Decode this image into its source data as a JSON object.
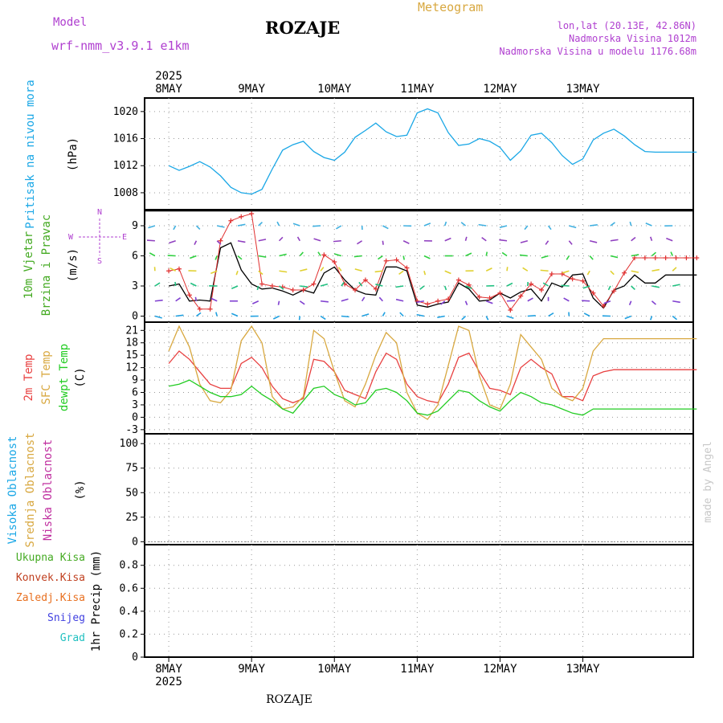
{
  "header": {
    "model_label": "Model",
    "model_name": "wrf-nmm_v3.9.1 e1km",
    "station": "ROZAJE",
    "product": "Meteogram",
    "coords": "lon,lat (20.13E, 42.86N)",
    "elevation": "Nadmorska Visina 1012m",
    "model_elevation": "Nadmorska Visina u modelu 1176.68m",
    "footer_station": "ROZAJE",
    "credit": "made by Angel"
  },
  "colors": {
    "pressure": "#1aa7e6",
    "wind10": "#000000",
    "gust": "#e03030",
    "temp2m": "#e84040",
    "sfc": "#d8a840",
    "dew": "#22cc22",
    "high_cloud": "#1aa7e6",
    "mid_cloud": "#d8a840",
    "low_cloud": "#c030a0",
    "total_precip": "#44aa22",
    "conv_precip": "#c04020",
    "ice": "#e87020",
    "snow": "#4040e0",
    "hail": "#20c0c0"
  },
  "time_axis": {
    "top_year": "2025",
    "bottom_year": "2025",
    "days": [
      "8MAY",
      "9MAY",
      "10MAY",
      "11MAY",
      "12MAY",
      "13MAY"
    ]
  },
  "chart_data": [
    {
      "type": "line",
      "panel": "pressure",
      "ylabel_lines": [
        "Pritisak na nivou mora",
        "(hPa)"
      ],
      "yticks": [
        1008,
        1012,
        1016,
        1020
      ],
      "ylim": [
        1005.5,
        1022.0
      ],
      "x": [
        0,
        3,
        6,
        9,
        12,
        15,
        18,
        21,
        24,
        27,
        30,
        33,
        36,
        39,
        42,
        45,
        48,
        51,
        54,
        57,
        60,
        63,
        66,
        69,
        72,
        75,
        78,
        81,
        84,
        87,
        90,
        93,
        96,
        99,
        102,
        105,
        108,
        111,
        114,
        117,
        120,
        123,
        126,
        129,
        132,
        135,
        138,
        141,
        144,
        147,
        150,
        153
      ],
      "values": [
        1012.0,
        1011.3,
        1011.9,
        1012.6,
        1011.8,
        1010.5,
        1008.8,
        1008.0,
        1007.8,
        1008.5,
        1011.5,
        1014.3,
        1015.1,
        1015.6,
        1014.1,
        1013.2,
        1012.8,
        1014.0,
        1016.2,
        1017.2,
        1018.3,
        1017.0,
        1016.3,
        1016.5,
        1019.8,
        1020.4,
        1019.8,
        1016.9,
        1015.0,
        1015.2,
        1016.0,
        1015.6,
        1014.7,
        1012.8,
        1014.2,
        1016.5,
        1016.8,
        1015.4,
        1013.5,
        1012.2,
        1013.0,
        1015.8,
        1016.8,
        1017.4,
        1016.4,
        1015.1,
        1014.1,
        1014.0,
        1014.0,
        1014.0,
        1014.0,
        1014.0
      ]
    },
    {
      "type": "line",
      "panel": "wind",
      "ylabel_lines": [
        "10m Vjetar",
        "Brzina i Pravac",
        "(m/s)"
      ],
      "compass": {
        "n": "N",
        "w": "W",
        "e": "E",
        "s": "S"
      },
      "yticks": [
        0,
        3,
        6,
        9
      ],
      "ylim": [
        -0.6,
        10.6
      ],
      "x": [
        0,
        3,
        6,
        9,
        12,
        15,
        18,
        21,
        24,
        27,
        30,
        33,
        36,
        39,
        42,
        45,
        48,
        51,
        54,
        57,
        60,
        63,
        66,
        69,
        72,
        75,
        78,
        81,
        84,
        87,
        90,
        93,
        96,
        99,
        102,
        105,
        108,
        111,
        114,
        117,
        120,
        123,
        126,
        129,
        132,
        135,
        138,
        141,
        144,
        147,
        150,
        153
      ],
      "series": [
        {
          "values": [
            3.0,
            3.2,
            1.5,
            1.6,
            1.5,
            6.8,
            7.3,
            4.6,
            3.2,
            2.7,
            2.8,
            2.5,
            2.1,
            2.6,
            2.3,
            4.3,
            4.9,
            3.6,
            2.6,
            2.2,
            2.1,
            4.9,
            4.9,
            4.5,
            1.1,
            0.9,
            1.2,
            1.4,
            3.3,
            2.7,
            1.5,
            1.6,
            2.3,
            1.8,
            2.4,
            2.7,
            1.5,
            3.3,
            2.9,
            4.1,
            4.2,
            1.8,
            0.8,
            2.6,
            3.0,
            4.1,
            3.3,
            3.3,
            4.1,
            4.1,
            4.1,
            4.1
          ]
        },
        {
          "values": [
            4.5,
            4.7,
            2.1,
            0.7,
            0.7,
            7.5,
            9.5,
            9.9,
            10.2,
            3.2,
            3.0,
            2.9,
            2.6,
            2.6,
            3.2,
            6.1,
            5.4,
            3.2,
            2.6,
            3.6,
            2.7,
            5.5,
            5.6,
            4.8,
            1.5,
            1.2,
            1.5,
            1.7,
            3.6,
            3.1,
            1.9,
            1.8,
            2.3,
            0.6,
            2.0,
            3.2,
            2.6,
            4.2,
            4.2,
            3.7,
            3.5,
            2.3,
            1.0,
            2.5,
            4.3,
            5.8,
            5.8,
            5.8,
            5.8,
            5.8,
            5.8,
            5.8
          ]
        }
      ]
    },
    {
      "type": "line",
      "panel": "temperature",
      "ylabel_lines": [
        "2m Temp",
        "SFC Temp",
        "dewpt Temp",
        "(C)"
      ],
      "yticks": [
        -3,
        0,
        3,
        6,
        9,
        12,
        15,
        18,
        21
      ],
      "ylim": [
        -4.0,
        23.0
      ],
      "x": [
        0,
        3,
        6,
        9,
        12,
        15,
        18,
        21,
        24,
        27,
        30,
        33,
        36,
        39,
        42,
        45,
        48,
        51,
        54,
        57,
        60,
        63,
        66,
        69,
        72,
        75,
        78,
        81,
        84,
        87,
        90,
        93,
        96,
        99,
        102,
        105,
        108,
        111,
        114,
        117,
        120,
        123,
        126,
        129,
        132,
        135,
        138,
        141,
        144,
        147,
        150,
        153
      ],
      "series": [
        {
          "values": [
            13.0,
            16.0,
            14.0,
            11.0,
            8.0,
            7.0,
            7.0,
            13.0,
            14.5,
            12.0,
            7.5,
            4.5,
            3.5,
            4.5,
            14.0,
            13.5,
            11.0,
            6.5,
            5.5,
            4.5,
            11.0,
            15.5,
            14.0,
            8.0,
            5.0,
            4.0,
            3.5,
            8.0,
            14.5,
            15.5,
            11.0,
            7.0,
            6.5,
            5.5,
            12.0,
            14.0,
            12.0,
            10.5,
            5.0,
            5.0,
            4.0,
            10.0,
            11.0,
            11.5,
            11.5,
            11.5,
            11.5,
            11.5,
            11.5,
            11.5,
            11.5,
            11.5
          ]
        },
        {
          "values": [
            16.0,
            22.0,
            17.0,
            8.0,
            4.0,
            3.5,
            6.5,
            18.5,
            22.0,
            18.0,
            5.0,
            2.0,
            2.5,
            5.0,
            21.0,
            19.0,
            11.0,
            4.0,
            2.5,
            8.0,
            15.0,
            20.5,
            18.0,
            6.0,
            1.0,
            -0.5,
            3.0,
            12.5,
            22.0,
            21.0,
            10.0,
            3.0,
            2.0,
            8.0,
            20.0,
            17.0,
            14.0,
            7.0,
            5.0,
            4.0,
            7.0,
            16.0,
            19.0,
            19.0,
            19.0,
            19.0,
            19.0,
            19.0,
            19.0,
            19.0,
            19.0,
            19.0
          ]
        },
        {
          "values": [
            7.5,
            8.0,
            9.0,
            7.5,
            6.0,
            5.0,
            5.0,
            5.5,
            7.5,
            5.5,
            4.0,
            2.0,
            1.0,
            4.0,
            7.0,
            7.5,
            5.5,
            4.5,
            3.0,
            3.5,
            6.5,
            7.0,
            6.0,
            4.0,
            1.0,
            0.5,
            1.5,
            4.0,
            6.5,
            6.0,
            4.0,
            2.5,
            1.5,
            4.0,
            6.0,
            5.0,
            3.5,
            3.0,
            2.0,
            1.0,
            0.5,
            2.0,
            2.0,
            2.0,
            2.0,
            2.0,
            2.0,
            2.0,
            2.0,
            2.0,
            2.0,
            2.0
          ]
        }
      ]
    },
    {
      "type": "bar",
      "panel": "cloud",
      "ylabel_lines": [
        "Visoka Oblacnost",
        "Srednja Oblacnost",
        "Niska Oblacnost",
        "(%)"
      ],
      "yticks": [
        0,
        25,
        50,
        75,
        100
      ],
      "ylim": [
        -3,
        110
      ],
      "x": [
        0,
        3,
        6,
        9,
        12,
        15,
        18,
        21,
        24,
        27,
        30,
        33,
        36,
        39,
        42,
        45,
        48,
        51,
        54,
        57,
        60,
        63,
        66,
        69,
        72,
        75,
        78,
        81,
        84,
        87,
        90,
        93,
        96,
        99,
        102,
        105,
        108,
        111,
        114,
        117,
        120,
        123,
        126,
        129,
        132,
        135,
        138,
        141,
        144,
        147,
        150,
        153
      ],
      "series": [
        {
          "values": [
            0,
            0,
            0,
            0,
            0,
            0,
            0,
            0,
            0,
            0,
            0,
            0,
            0,
            0,
            0,
            0,
            0,
            0,
            0,
            0,
            0,
            0,
            0,
            0,
            0,
            0,
            0,
            0,
            0,
            0,
            0,
            0,
            0,
            0,
            0,
            0,
            0,
            0,
            0,
            0,
            0,
            0,
            0,
            0,
            0,
            0,
            0,
            0,
            0,
            0,
            0,
            0
          ]
        },
        {
          "values": [
            0,
            0,
            0,
            0,
            0,
            0,
            0,
            0,
            0,
            0,
            0,
            0,
            0,
            0,
            0,
            0,
            0,
            0,
            0,
            0,
            0,
            0,
            0,
            0,
            0,
            0,
            0,
            0,
            0,
            0,
            0,
            0,
            0,
            0,
            0,
            0,
            0,
            0,
            0,
            0,
            0,
            0,
            0,
            0,
            0,
            0,
            0,
            0,
            0,
            0,
            0,
            0
          ]
        },
        {
          "values": [
            0,
            0,
            0,
            0,
            0,
            0,
            0,
            0,
            0,
            0,
            0,
            0,
            0,
            0,
            0,
            0,
            0,
            0,
            0,
            0,
            0,
            0,
            0,
            0,
            0,
            0,
            0,
            0,
            0,
            0,
            0,
            0,
            0,
            0,
            0,
            0,
            0,
            0,
            0,
            0,
            0,
            0,
            0,
            0,
            0,
            0,
            0,
            0,
            0,
            0,
            0,
            0
          ]
        }
      ]
    },
    {
      "type": "bar",
      "panel": "precip",
      "ylabel_lines": [
        "1hr Precip (mm)"
      ],
      "legend": [
        "Ukupna Kisa",
        "Konvek.Kisa",
        "Zaledj.Kisa",
        "Snijeg",
        "Grad"
      ],
      "yticks": [
        0.0,
        0.2,
        0.4,
        0.6,
        0.8
      ],
      "ylim": [
        0,
        0.98
      ],
      "x": [
        0,
        3,
        6,
        9,
        12,
        15,
        18,
        21,
        24,
        27,
        30,
        33,
        36,
        39,
        42,
        45,
        48,
        51,
        54,
        57,
        60,
        63,
        66,
        69,
        72,
        75,
        78,
        81,
        84,
        87,
        90,
        93,
        96,
        99,
        102,
        105,
        108,
        111,
        114,
        117,
        120,
        123,
        126,
        129,
        132,
        135,
        138,
        141,
        144,
        147,
        150,
        153
      ],
      "series": [
        {
          "values": [
            0,
            0,
            0,
            0,
            0,
            0,
            0,
            0,
            0,
            0,
            0,
            0,
            0,
            0,
            0,
            0,
            0,
            0,
            0,
            0,
            0,
            0,
            0,
            0,
            0,
            0,
            0,
            0,
            0,
            0,
            0,
            0,
            0,
            0,
            0,
            0,
            0,
            0,
            0,
            0,
            0,
            0,
            0,
            0,
            0,
            0,
            0,
            0,
            0,
            0,
            0,
            0
          ]
        },
        {
          "values": [
            0,
            0,
            0,
            0,
            0,
            0,
            0,
            0,
            0,
            0,
            0,
            0,
            0,
            0,
            0,
            0,
            0,
            0,
            0,
            0,
            0,
            0,
            0,
            0,
            0,
            0,
            0,
            0,
            0,
            0,
            0,
            0,
            0,
            0,
            0,
            0,
            0,
            0,
            0,
            0,
            0,
            0,
            0,
            0,
            0,
            0,
            0,
            0,
            0,
            0,
            0,
            0
          ]
        }
      ]
    }
  ]
}
